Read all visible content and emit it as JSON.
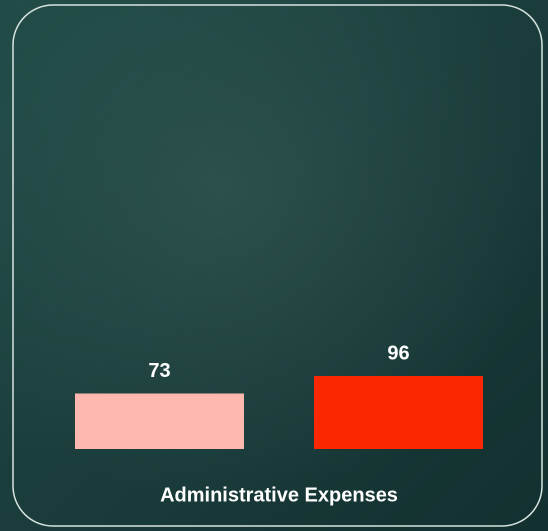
{
  "chart_data": {
    "type": "bar",
    "categories": [
      "Administrative Expenses"
    ],
    "series": [
      {
        "color": "#ffb8b0",
        "values": [
          73
        ]
      },
      {
        "color": "#fa2700",
        "values": [
          96
        ]
      }
    ]
  }
}
